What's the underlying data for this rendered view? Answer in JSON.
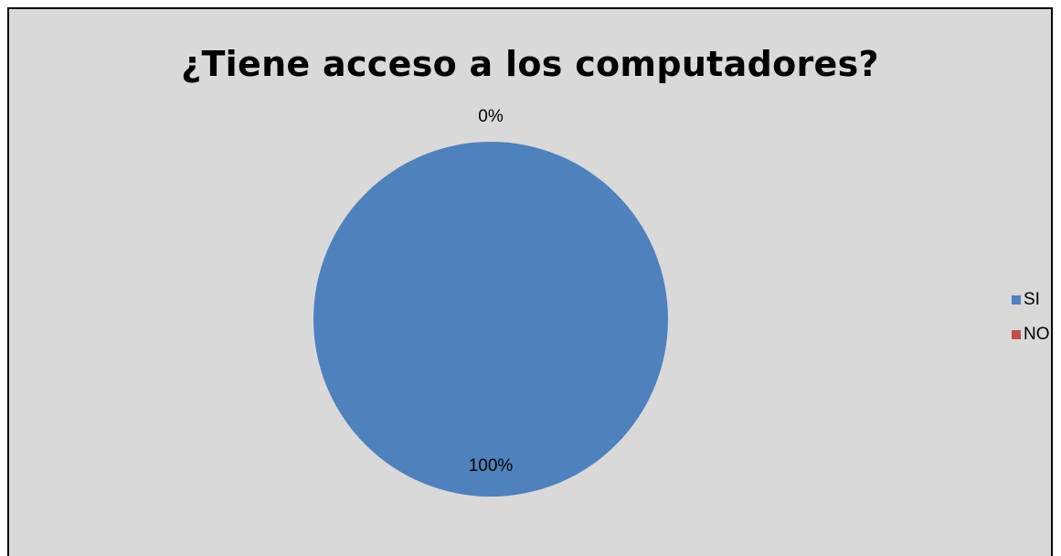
{
  "chart_data": {
    "type": "pie",
    "title": "¿Tiene acceso a los computadores?",
    "categories": [
      "SI",
      "NO"
    ],
    "values": [
      100,
      0
    ],
    "data_labels": [
      "100%",
      "0%"
    ],
    "colors": [
      "#4f81bd",
      "#c0504d"
    ],
    "legend_position": "right",
    "background": "#d9d9d9"
  }
}
